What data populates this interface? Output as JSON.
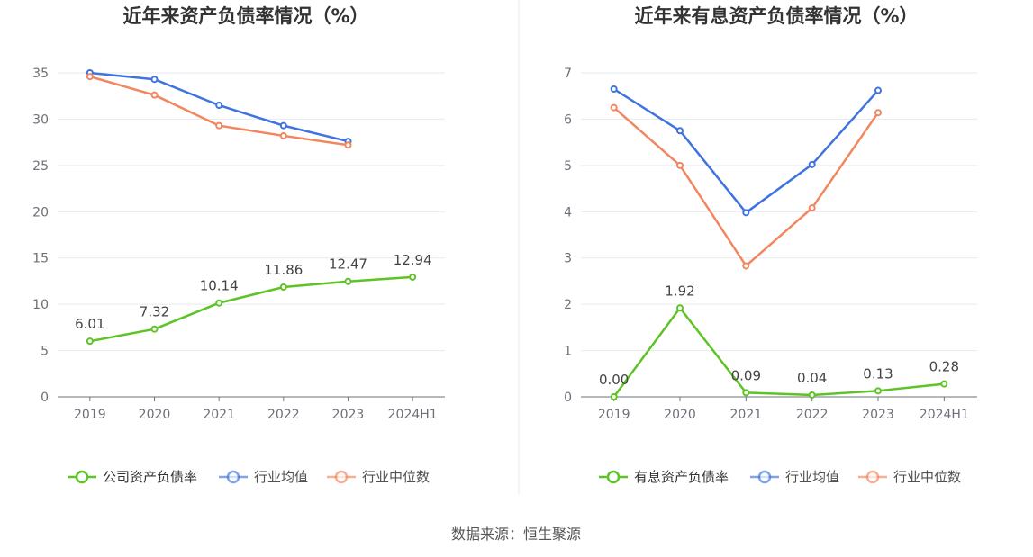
{
  "chart_data": [
    {
      "type": "line",
      "title": "近年来资产负债率情况（%）",
      "categories": [
        "2019",
        "2020",
        "2021",
        "2022",
        "2023",
        "2024H1"
      ],
      "yticks": [
        "0",
        "5",
        "10",
        "15",
        "20",
        "25",
        "30",
        "35"
      ],
      "ylim": [
        0,
        35
      ],
      "grid": true,
      "legend_position": "bottom-center",
      "series": [
        {
          "name": "公司资产负债率",
          "color": "#5cc424",
          "values": [
            6.01,
            7.32,
            10.14,
            11.86,
            12.47,
            12.94
          ],
          "labels": [
            "6.01",
            "7.32",
            "10.14",
            "11.86",
            "12.47",
            "12.94"
          ]
        },
        {
          "name": "行业均值",
          "color": "#3e73e0",
          "values": [
            35.0,
            34.3,
            31.5,
            29.3,
            27.6,
            null
          ]
        },
        {
          "name": "行业中位数",
          "color": "#f2865e",
          "values": [
            34.6,
            32.6,
            29.3,
            28.2,
            27.2,
            null
          ]
        }
      ]
    },
    {
      "type": "line",
      "title": "近年来有息资产负债率情况（%）",
      "categories": [
        "2019",
        "2020",
        "2021",
        "2022",
        "2023",
        "2024H1"
      ],
      "yticks": [
        "0",
        "1",
        "2",
        "3",
        "4",
        "5",
        "6",
        "7"
      ],
      "ylim": [
        0,
        7
      ],
      "grid": true,
      "legend_position": "bottom-center",
      "series": [
        {
          "name": "有息资产负债率",
          "color": "#5cc424",
          "values": [
            0.0,
            1.92,
            0.09,
            0.04,
            0.13,
            0.28
          ],
          "labels": [
            "0.00",
            "1.92",
            "0.09",
            "0.04",
            "0.13",
            "0.28"
          ]
        },
        {
          "name": "行业均值",
          "color": "#3e73e0",
          "values": [
            6.65,
            5.75,
            3.98,
            5.02,
            6.62,
            null
          ]
        },
        {
          "name": "行业中位数",
          "color": "#f2865e",
          "values": [
            6.25,
            5.0,
            2.83,
            4.08,
            6.14,
            null
          ]
        }
      ]
    }
  ],
  "source_text": "数据来源：恒生聚源"
}
